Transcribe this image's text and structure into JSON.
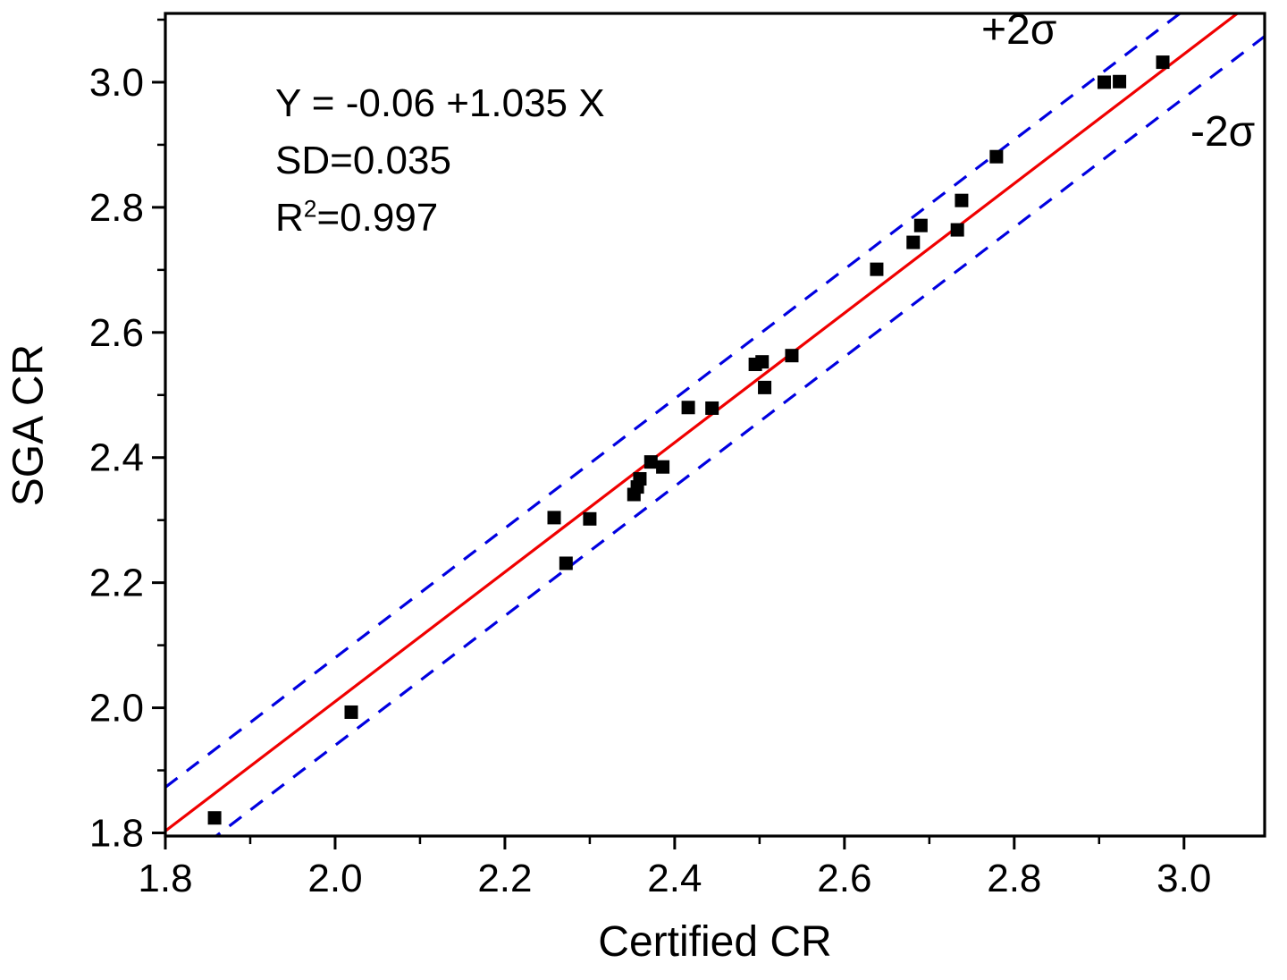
{
  "chart_data": {
    "type": "scatter",
    "title": "",
    "xlabel": "Certified CR",
    "ylabel": "SGA CR",
    "xlim": [
      1.8,
      3.095
    ],
    "ylim": [
      1.795,
      3.11
    ],
    "x_major_ticks": [
      1.8,
      2.0,
      2.2,
      2.4,
      2.6,
      2.8,
      3.0
    ],
    "y_major_ticks": [
      1.8,
      2.0,
      2.2,
      2.4,
      2.6,
      2.8,
      3.0
    ],
    "minor_step": 0.1,
    "tick_decimals": 1,
    "grid": false,
    "legend": "none",
    "points": [
      [
        1.858,
        1.824
      ],
      [
        2.019,
        1.993
      ],
      [
        2.258,
        2.304
      ],
      [
        2.272,
        2.231
      ],
      [
        2.3,
        2.302
      ],
      [
        2.352,
        2.341
      ],
      [
        2.356,
        2.353
      ],
      [
        2.359,
        2.366
      ],
      [
        2.372,
        2.393
      ],
      [
        2.386,
        2.385
      ],
      [
        2.416,
        2.48
      ],
      [
        2.444,
        2.479
      ],
      [
        2.495,
        2.549
      ],
      [
        2.503,
        2.553
      ],
      [
        2.506,
        2.512
      ],
      [
        2.538,
        2.563
      ],
      [
        2.638,
        2.701
      ],
      [
        2.681,
        2.744
      ],
      [
        2.69,
        2.771
      ],
      [
        2.733,
        2.764
      ],
      [
        2.738,
        2.811
      ],
      [
        2.779,
        2.881
      ],
      [
        2.906,
        3.0
      ],
      [
        2.924,
        3.001
      ],
      [
        2.975,
        3.032
      ]
    ],
    "fit_line": {
      "slope": 1.035,
      "intercept": -0.06,
      "color": "#f00000"
    },
    "bands": {
      "offset": 0.07,
      "color": "#0000e0",
      "upper_label": "+2σ",
      "lower_label": "-2σ"
    },
    "annotation": {
      "line1": "Y = -0.06 +1.035 X",
      "line2": "SD=0.035",
      "line3_base": "R",
      "line3_sup": "2",
      "line3_rest": "=0.997"
    },
    "colors": {
      "points": "#000000",
      "frame": "#000000"
    }
  }
}
